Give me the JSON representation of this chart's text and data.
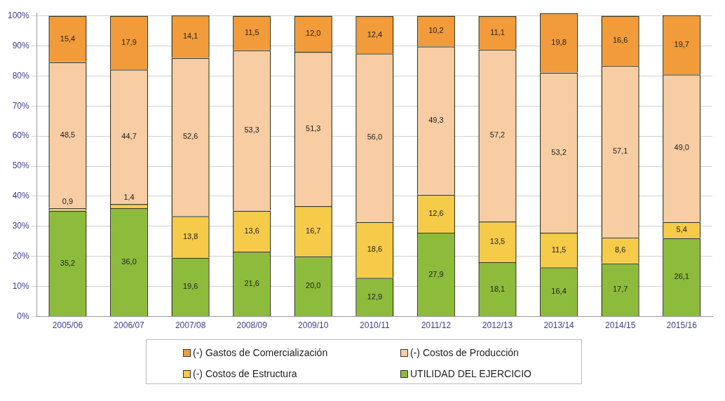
{
  "chart_data": {
    "type": "bar",
    "stacked": true,
    "categories": [
      "2005/06",
      "2006/07",
      "2007/08",
      "2008/09",
      "2009/10",
      "2010/11",
      "2011/12",
      "2012/13",
      "2013/14",
      "2014/15",
      "2015/16"
    ],
    "ylim": [
      0,
      101
    ],
    "yticks": [
      {
        "value": 0,
        "label": "0%"
      },
      {
        "value": 10,
        "label": "10%"
      },
      {
        "value": 20,
        "label": "20%"
      },
      {
        "value": 30,
        "label": "30%"
      },
      {
        "value": 40,
        "label": "40%"
      },
      {
        "value": 50,
        "label": "50%"
      },
      {
        "value": 60,
        "label": "60%"
      },
      {
        "value": 70,
        "label": "70%"
      },
      {
        "value": 80,
        "label": "80%"
      },
      {
        "value": 90,
        "label": "90%"
      },
      {
        "value": 100,
        "label": "100%"
      }
    ],
    "grid": "y",
    "legend": "bottom",
    "series": [
      {
        "name": "UTILIDAD DEL EJERCICIO",
        "color": "#8dbb3c",
        "values": [
          35.2,
          36.0,
          19.6,
          21.6,
          20.0,
          12.9,
          27.9,
          18.1,
          16.4,
          17.7,
          26.1
        ],
        "value_labels": [
          "35,2",
          "36,0",
          "19,6",
          "21,6",
          "20,0",
          "12,9",
          "27,9",
          "18,1",
          "16,4",
          "17,7",
          "26,1"
        ]
      },
      {
        "name": "(-) Costos de Estructura",
        "color": "#f6cb4a",
        "values": [
          0.9,
          1.4,
          13.8,
          13.6,
          16.7,
          18.6,
          12.6,
          13.5,
          11.5,
          8.6,
          5.4
        ],
        "value_labels": [
          "0,9",
          "1,4",
          "13,8",
          "13,6",
          "16,7",
          "18,6",
          "12,6",
          "13,5",
          "11,5",
          "8,6",
          "5,4"
        ]
      },
      {
        "name": "(-) Costos de Producción",
        "color": "#f8cda3",
        "values": [
          48.5,
          44.7,
          52.6,
          53.3,
          51.3,
          56.0,
          49.3,
          57.2,
          53.2,
          57.1,
          49.0
        ],
        "value_labels": [
          "48,5",
          "44,7",
          "52,6",
          "53,3",
          "51,3",
          "56,0",
          "49,3",
          "57,2",
          "53,2",
          "57,1",
          "49,0"
        ]
      },
      {
        "name": "(-) Gastos de Comercialización",
        "color": "#f29b3a",
        "values": [
          15.4,
          17.9,
          14.1,
          11.5,
          12.0,
          12.4,
          10.2,
          11.1,
          19.8,
          16.6,
          19.7
        ],
        "value_labels": [
          "15,4",
          "17,9",
          "14,1",
          "11,5",
          "12,0",
          "12,4",
          "10,2",
          "11,1",
          "19,8",
          "16,6",
          "19,7"
        ]
      }
    ]
  }
}
